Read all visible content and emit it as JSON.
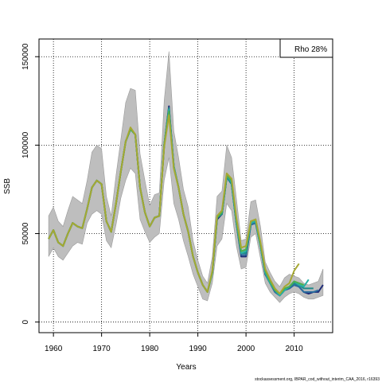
{
  "chart_data": {
    "type": "line",
    "xlabel": "Years",
    "ylabel": "SSB",
    "xlim": [
      1957,
      2018
    ],
    "ylim": [
      -6000,
      160000
    ],
    "x_ticks": [
      1960,
      1970,
      1980,
      1990,
      2000,
      2010
    ],
    "y_ticks": [
      0,
      50000,
      100000,
      150000
    ],
    "grid": true,
    "grid_style": "dotted",
    "legend": {
      "label": "Rho 28%",
      "placement": "top-right"
    },
    "credit": "stockassessment.org, IBPAR_cod_without_interim_CAA_2016, r16393",
    "confidence_band_color": "#bebebe",
    "band": {
      "x": [
        1959,
        1960,
        1961,
        1962,
        1963,
        1964,
        1965,
        1966,
        1967,
        1968,
        1969,
        1970,
        1971,
        1972,
        1973,
        1974,
        1975,
        1976,
        1977,
        1978,
        1979,
        1980,
        1981,
        1982,
        1983,
        1984,
        1985,
        1986,
        1987,
        1988,
        1989,
        1990,
        1991,
        1992,
        1993,
        1994,
        1995,
        1996,
        1997,
        1998,
        1999,
        2000,
        2001,
        2002,
        2003,
        2004,
        2005,
        2006,
        2007,
        2008,
        2009,
        2010,
        2011,
        2012,
        2013,
        2014,
        2015,
        2016
      ],
      "upper": [
        60000,
        65000,
        57000,
        54000,
        63000,
        71000,
        69000,
        67000,
        80000,
        96000,
        100000,
        98000,
        71000,
        60000,
        83000,
        103000,
        124000,
        132000,
        131000,
        95000,
        80000,
        66000,
        72000,
        73000,
        125000,
        153000,
        108000,
        93000,
        75000,
        65000,
        46000,
        35000,
        26000,
        22000,
        37000,
        71000,
        74000,
        100000,
        93000,
        70000,
        46000,
        47000,
        68000,
        69000,
        54000,
        34000,
        28000,
        23000,
        20000,
        25000,
        27000,
        26000,
        25000,
        22000,
        21000,
        22000,
        23000,
        30000
      ],
      "lower": [
        37000,
        42000,
        37000,
        35000,
        39000,
        43000,
        45000,
        44000,
        56000,
        61000,
        63000,
        61000,
        46000,
        42000,
        55000,
        70000,
        80000,
        87000,
        84000,
        58000,
        51000,
        45000,
        48000,
        50000,
        80000,
        93000,
        67000,
        58000,
        46000,
        37000,
        27000,
        20000,
        13000,
        12000,
        22000,
        43000,
        47000,
        67000,
        63000,
        43000,
        30000,
        31000,
        48000,
        50000,
        36000,
        22000,
        17000,
        14000,
        11000,
        14000,
        16000,
        17000,
        16000,
        14000,
        13000,
        13000,
        14000,
        15000
      ]
    },
    "series": [
      {
        "color": "#1e2b78",
        "x": [
          1959,
          1960,
          1961,
          1962,
          1963,
          1964,
          1965,
          1966,
          1967,
          1968,
          1969,
          1970,
          1971,
          1972,
          1973,
          1974,
          1975,
          1976,
          1977,
          1978,
          1979,
          1980,
          1981,
          1982,
          1983,
          1984,
          1985,
          1986,
          1987,
          1988,
          1989,
          1990,
          1991,
          1992,
          1993,
          1994,
          1995,
          1996,
          1997,
          1998,
          1999,
          2000,
          2001,
          2002,
          2003,
          2004,
          2005,
          2006,
          2007,
          2008,
          2009,
          2010,
          2011,
          2012,
          2013,
          2014,
          2015,
          2016
        ],
        "values": [
          47000,
          52000,
          45000,
          43000,
          50000,
          56000,
          54000,
          53000,
          64000,
          76000,
          80000,
          78000,
          57000,
          51000,
          67000,
          85000,
          102000,
          109000,
          106000,
          76000,
          62000,
          54000,
          59000,
          60000,
          100000,
          122000,
          88000,
          76000,
          61000,
          51000,
          37000,
          28000,
          21000,
          17000,
          28000,
          58000,
          61000,
          82000,
          78000,
          56000,
          37000,
          37000,
          55000,
          56000,
          43000,
          27000,
          22000,
          17000,
          15000,
          18000,
          19000,
          21000,
          20000,
          17000,
          16000,
          17000,
          17000,
          21000
        ]
      },
      {
        "color": "#2a6e9e",
        "x": [
          1959,
          1960,
          1961,
          1962,
          1963,
          1964,
          1965,
          1966,
          1967,
          1968,
          1969,
          1970,
          1971,
          1972,
          1973,
          1974,
          1975,
          1976,
          1977,
          1978,
          1979,
          1980,
          1981,
          1982,
          1983,
          1984,
          1985,
          1986,
          1987,
          1988,
          1989,
          1990,
          1991,
          1992,
          1993,
          1994,
          1995,
          1996,
          1997,
          1998,
          1999,
          2000,
          2001,
          2002,
          2003,
          2004,
          2005,
          2006,
          2007,
          2008,
          2009,
          2010,
          2011,
          2012,
          2013,
          2014,
          2015
        ],
        "values": [
          47000,
          52000,
          45000,
          43000,
          50000,
          56000,
          54000,
          53000,
          64000,
          76000,
          80000,
          78000,
          57000,
          51000,
          67000,
          85000,
          102000,
          109000,
          106000,
          76000,
          62000,
          54000,
          59000,
          60000,
          100000,
          121000,
          88000,
          76000,
          61000,
          51000,
          37000,
          28000,
          21000,
          17000,
          28000,
          59000,
          61000,
          82000,
          78000,
          56000,
          38000,
          38000,
          55000,
          56000,
          43000,
          27000,
          22000,
          17000,
          15000,
          18000,
          19000,
          21000,
          20000,
          17000,
          17000,
          17000,
          18000
        ]
      },
      {
        "color": "#1f8a8a",
        "x": [
          1959,
          1960,
          1961,
          1962,
          1963,
          1964,
          1965,
          1966,
          1967,
          1968,
          1969,
          1970,
          1971,
          1972,
          1973,
          1974,
          1975,
          1976,
          1977,
          1978,
          1979,
          1980,
          1981,
          1982,
          1983,
          1984,
          1985,
          1986,
          1987,
          1988,
          1989,
          1990,
          1991,
          1992,
          1993,
          1994,
          1995,
          1996,
          1997,
          1998,
          1999,
          2000,
          2001,
          2002,
          2003,
          2004,
          2005,
          2006,
          2007,
          2008,
          2009,
          2010,
          2011,
          2012,
          2013,
          2014
        ],
        "values": [
          47000,
          52000,
          45000,
          43000,
          50000,
          56000,
          54000,
          53000,
          64000,
          76000,
          80000,
          78000,
          57000,
          51000,
          67000,
          85000,
          102000,
          109000,
          106000,
          76000,
          62000,
          54000,
          59000,
          60000,
          100000,
          121000,
          88000,
          76000,
          61000,
          51000,
          37000,
          28000,
          21000,
          17000,
          28000,
          59000,
          61000,
          82000,
          78000,
          56000,
          39000,
          39000,
          56000,
          57000,
          43000,
          28000,
          22000,
          18000,
          15000,
          18000,
          20000,
          22000,
          21000,
          19000,
          19000,
          19000
        ]
      },
      {
        "color": "#27b0a4",
        "x": [
          1959,
          1960,
          1961,
          1962,
          1963,
          1964,
          1965,
          1966,
          1967,
          1968,
          1969,
          1970,
          1971,
          1972,
          1973,
          1974,
          1975,
          1976,
          1977,
          1978,
          1979,
          1980,
          1981,
          1982,
          1983,
          1984,
          1985,
          1986,
          1987,
          1988,
          1989,
          1990,
          1991,
          1992,
          1993,
          1994,
          1995,
          1996,
          1997,
          1998,
          1999,
          2000,
          2001,
          2002,
          2003,
          2004,
          2005,
          2006,
          2007,
          2008,
          2009,
          2010,
          2011,
          2012,
          2013
        ],
        "values": [
          47000,
          52000,
          45000,
          43000,
          50000,
          56000,
          54000,
          53000,
          64000,
          76000,
          80000,
          78000,
          57000,
          51000,
          67000,
          85000,
          102000,
          109000,
          106000,
          76000,
          62000,
          54000,
          59000,
          60000,
          100000,
          120000,
          88000,
          76000,
          61000,
          51000,
          37000,
          28000,
          21000,
          17000,
          28000,
          59000,
          62000,
          83000,
          79000,
          57000,
          39000,
          40000,
          56000,
          57000,
          43000,
          28000,
          22000,
          18000,
          15000,
          18000,
          20000,
          23000,
          21000,
          20000,
          24000
        ]
      },
      {
        "color": "#4caf50",
        "x": [
          1959,
          1960,
          1961,
          1962,
          1963,
          1964,
          1965,
          1966,
          1967,
          1968,
          1969,
          1970,
          1971,
          1972,
          1973,
          1974,
          1975,
          1976,
          1977,
          1978,
          1979,
          1980,
          1981,
          1982,
          1983,
          1984,
          1985,
          1986,
          1987,
          1988,
          1989,
          1990,
          1991,
          1992,
          1993,
          1994,
          1995,
          1996,
          1997,
          1998,
          1999,
          2000,
          2001,
          2002,
          2003,
          2004,
          2005,
          2006,
          2007,
          2008,
          2009,
          2010,
          2011,
          2012
        ],
        "values": [
          47000,
          52000,
          45000,
          43000,
          50000,
          56000,
          54000,
          53000,
          64000,
          76000,
          80000,
          78000,
          57000,
          51000,
          67000,
          85000,
          102000,
          109000,
          106000,
          76000,
          62000,
          54000,
          59000,
          60000,
          100000,
          119000,
          87000,
          76000,
          61000,
          51000,
          37000,
          28000,
          21000,
          17000,
          28000,
          59000,
          62000,
          83000,
          80000,
          58000,
          40000,
          41000,
          57000,
          58000,
          44000,
          29000,
          23000,
          18000,
          16000,
          19000,
          20000,
          23000,
          22000,
          21000
        ]
      },
      {
        "color": "#a6a832",
        "x": [
          1959,
          1960,
          1961,
          1962,
          1963,
          1964,
          1965,
          1966,
          1967,
          1968,
          1969,
          1970,
          1971,
          1972,
          1973,
          1974,
          1975,
          1976,
          1977,
          1978,
          1979,
          1980,
          1981,
          1982,
          1983,
          1984,
          1985,
          1986,
          1987,
          1988,
          1989,
          1990,
          1991,
          1992,
          1993,
          1994,
          1995,
          1996,
          1997,
          1998,
          1999,
          2000,
          2001,
          2002,
          2003,
          2004,
          2005,
          2006,
          2007,
          2008,
          2009,
          2010,
          2011
        ],
        "values": [
          47000,
          52000,
          45000,
          43000,
          50000,
          56000,
          54000,
          53000,
          64000,
          76000,
          80000,
          78000,
          57000,
          51000,
          67000,
          85000,
          102000,
          110000,
          106000,
          76000,
          62000,
          54000,
          59000,
          60000,
          99000,
          117000,
          87000,
          76000,
          61000,
          51000,
          37000,
          28000,
          21000,
          17000,
          29000,
          60000,
          63000,
          84000,
          81000,
          59000,
          42000,
          43000,
          57000,
          58000,
          45000,
          30000,
          24000,
          19000,
          16000,
          20000,
          22000,
          29000,
          33000
        ]
      }
    ]
  }
}
